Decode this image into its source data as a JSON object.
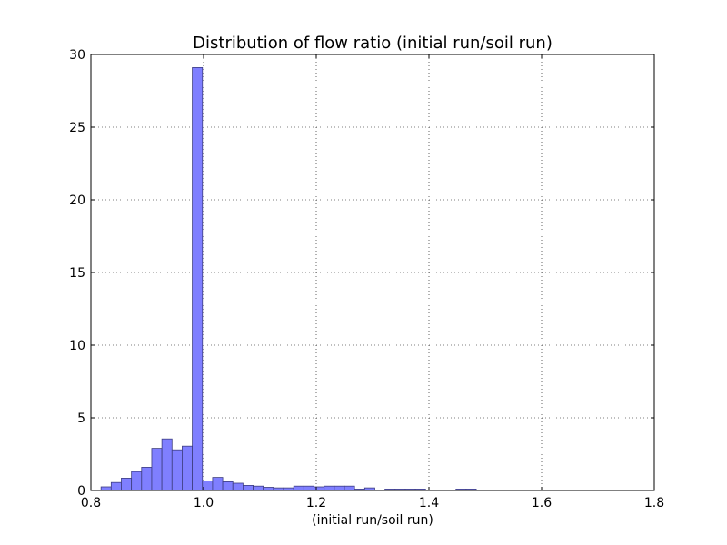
{
  "chart_data": {
    "type": "bar",
    "title": "Distribution of flow ratio (initial run/soil run)",
    "xlabel": "(initial run/soil run)",
    "ylabel": "",
    "xlim": [
      0.8,
      1.8
    ],
    "ylim": [
      0,
      30
    ],
    "grid": true,
    "bar_color": "#7f7fff",
    "bar_edge_color": "#3d3d80",
    "xticks": [
      "0.8",
      "1.0",
      "1.2",
      "1.4",
      "1.6",
      "1.8"
    ],
    "yticks": [
      "0",
      "5",
      "10",
      "15",
      "20",
      "25",
      "30"
    ],
    "bin_width": 0.018,
    "bin_starts": [
      0.818,
      0.836,
      0.854,
      0.872,
      0.89,
      0.908,
      0.926,
      0.944,
      0.962,
      0.98,
      0.998,
      1.016,
      1.034,
      1.052,
      1.07,
      1.088,
      1.106,
      1.124,
      1.142,
      1.16,
      1.178,
      1.196,
      1.214,
      1.232,
      1.25,
      1.268,
      1.286,
      1.304,
      1.322,
      1.34,
      1.358,
      1.376,
      1.394,
      1.412,
      1.43,
      1.448,
      1.466,
      1.484,
      1.502,
      1.52,
      1.538,
      1.556,
      1.574,
      1.592,
      1.61,
      1.628,
      1.646,
      1.664,
      1.682
    ],
    "values": [
      0.25,
      0.55,
      0.85,
      1.3,
      1.6,
      2.9,
      3.55,
      2.8,
      3.05,
      29.1,
      0.65,
      0.9,
      0.6,
      0.5,
      0.35,
      0.3,
      0.22,
      0.18,
      0.18,
      0.3,
      0.3,
      0.25,
      0.3,
      0.3,
      0.3,
      0.1,
      0.18,
      0.03,
      0.1,
      0.1,
      0.1,
      0.1,
      0.03,
      0.03,
      0.03,
      0.1,
      0.1,
      0.03,
      0.03,
      0.03,
      0.03,
      0.03,
      0.03,
      0.03,
      0.03,
      0.03,
      0.03,
      0.03,
      0.03
    ]
  }
}
